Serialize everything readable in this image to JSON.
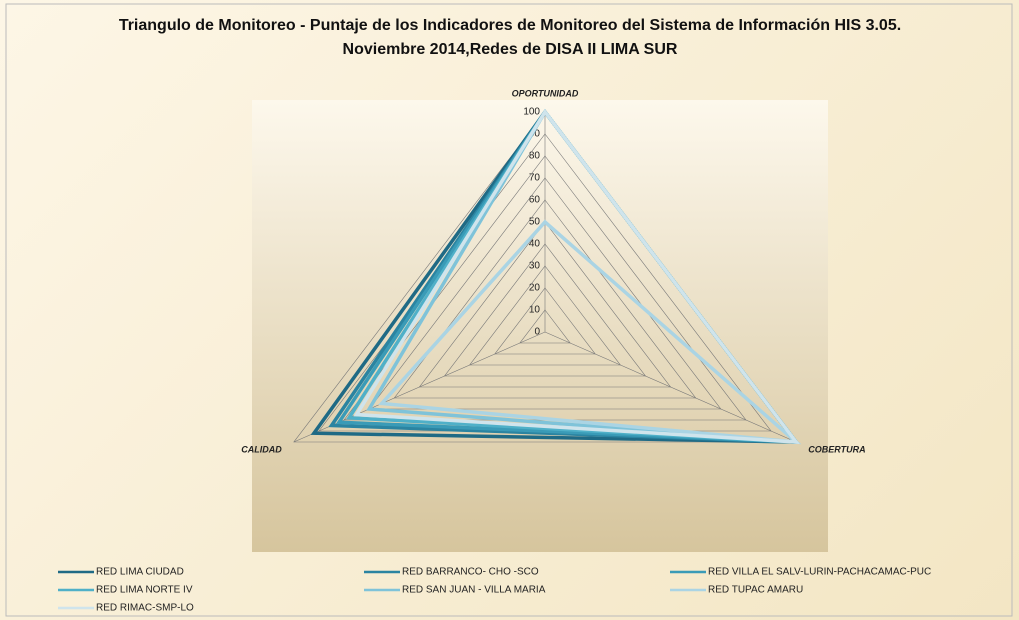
{
  "chart_data": {
    "type": "radar",
    "title": "Triangulo de Monitoreo - Puntaje de los Indicadores de Monitoreo del Sistema de Información HIS 3.05. Noviembre 2014,Redes de DISA II LIMA SUR",
    "categories": [
      "OPORTUNIDAD",
      "COBERTURA",
      "CALIDAD"
    ],
    "ylim": [
      0,
      100
    ],
    "yticks": [
      0,
      10,
      20,
      30,
      40,
      50,
      60,
      70,
      80,
      90,
      100
    ],
    "grid": true,
    "legend": "bottom",
    "series": [
      {
        "name": "RED LIMA CIUDAD",
        "color": "#1f6a85",
        "values": [
          100,
          100,
          92
        ]
      },
      {
        "name": "RED BARRANCO- CHO -SCO",
        "color": "#2b84a1",
        "values": [
          100,
          100,
          85
        ]
      },
      {
        "name": "RED VILLA EL SALV-LURIN-PACHACAMAC-PUC",
        "color": "#3a9bb7",
        "values": [
          100,
          100,
          82
        ]
      },
      {
        "name": "RED LIMA NORTE IV",
        "color": "#4fb0c8",
        "values": [
          100,
          100,
          78
        ]
      },
      {
        "name": "RED SAN JUAN - VILLA MARIA",
        "color": "#7fc3d9",
        "values": [
          100,
          100,
          70
        ]
      },
      {
        "name": "RED TUPAC AMARU",
        "color": "#aad4e4",
        "values": [
          50,
          100,
          65
        ]
      },
      {
        "name": "RED RIMAC-SMP-LO",
        "color": "#cfe4ec",
        "values": [
          100,
          100,
          75
        ]
      }
    ]
  }
}
